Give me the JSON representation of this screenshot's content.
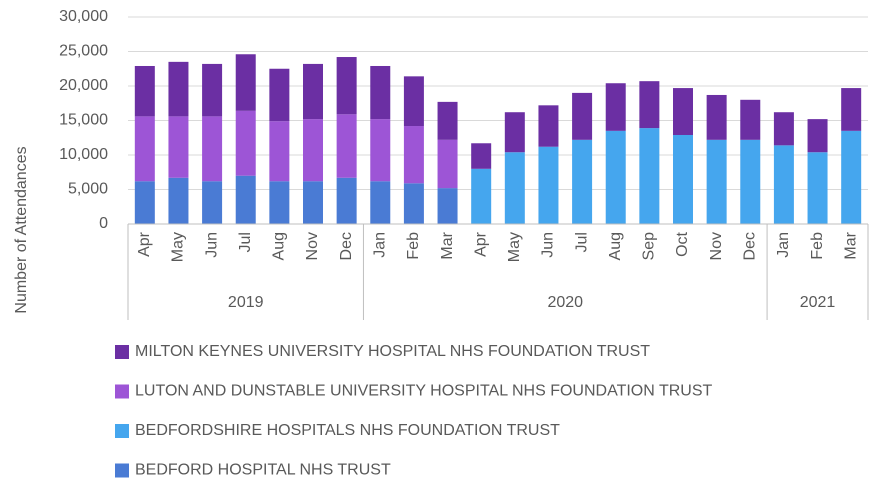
{
  "chart_data": {
    "type": "stacked_bar",
    "y_axis_label": "Number of Attendances",
    "categories": [
      "Apr",
      "May",
      "Jun",
      "Jul",
      "Aug",
      "Nov",
      "Dec",
      "Jan",
      "Feb",
      "Mar",
      "Apr",
      "May",
      "Jun",
      "Jul",
      "Aug",
      "Sep",
      "Oct",
      "Nov",
      "Dec",
      "Jan",
      "Feb",
      "Mar"
    ],
    "groups": [
      {
        "name": "2019",
        "size": 7
      },
      {
        "name": "2020",
        "size": 12
      },
      {
        "name": "2021",
        "size": 3
      }
    ],
    "series": [
      {
        "name": "BEDFORD HOSPITAL NHS TRUST",
        "color": "#4a7bd4",
        "values": [
          6200,
          6700,
          6200,
          7000,
          6200,
          6200,
          6700,
          6200,
          5900,
          5200,
          null,
          null,
          null,
          null,
          null,
          null,
          null,
          null,
          null,
          null,
          null,
          null
        ]
      },
      {
        "name": "BEDFORDSHIRE HOSPITALS NHS FOUNDATION TRUST",
        "color": "#45a6ee",
        "values": [
          null,
          null,
          null,
          null,
          null,
          null,
          null,
          null,
          null,
          null,
          8000,
          10400,
          11200,
          12200,
          13500,
          13900,
          12900,
          12200,
          12200,
          11400,
          10400,
          13500
        ]
      },
      {
        "name": "LUTON AND DUNSTABLE UNIVERSITY HOSPITAL NHS FOUNDATION TRUST",
        "color": "#9d55d6",
        "values": [
          9400,
          8900,
          9400,
          9400,
          8700,
          9000,
          9200,
          9000,
          8300,
          7000,
          null,
          null,
          null,
          null,
          null,
          null,
          null,
          null,
          null,
          null,
          null,
          null
        ]
      },
      {
        "name": "MILTON KEYNES UNIVERSITY HOSPITAL NHS FOUNDATION TRUST",
        "color": "#6b2fa3",
        "values": [
          7300,
          7900,
          7600,
          8200,
          7600,
          8000,
          8300,
          7700,
          7200,
          5500,
          3700,
          5800,
          6000,
          6800,
          6900,
          6800,
          6800,
          6500,
          5800,
          4800,
          4800,
          6200
        ]
      }
    ],
    "ylim": [
      0,
      30000
    ],
    "yticks": [
      0,
      {
        "value": 5000,
        "label": "5,000"
      },
      {
        "value": 10000,
        "label": "10,000"
      },
      {
        "value": 15000,
        "label": "15,000"
      },
      {
        "value": 20000,
        "label": "20,000"
      },
      {
        "value": 25000,
        "label": "25,000"
      },
      {
        "value": 30000,
        "label": "30,000"
      }
    ],
    "grid": true,
    "legend": "bottom"
  }
}
